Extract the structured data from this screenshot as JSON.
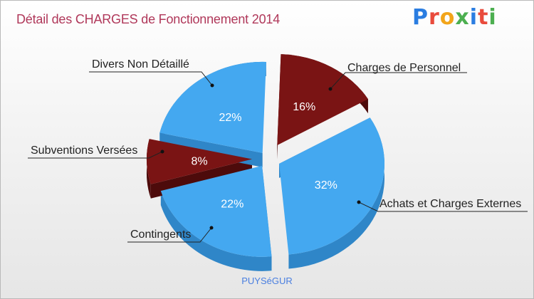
{
  "header": {
    "title": "Détail des CHARGES de Fonctionnement 2014",
    "logo_text": "Proxiti"
  },
  "logo_colors": [
    "#2a7de1",
    "#e94b3c",
    "#f2a51a",
    "#4caf50",
    "#2a7de1",
    "#e94b3c",
    "#4caf50"
  ],
  "footer": {
    "commune": "PUYSéGUR"
  },
  "chart_data": {
    "type": "pie",
    "title": "Détail des CHARGES de Fonctionnement 2014",
    "slices": [
      {
        "name": "Charges de Personnel",
        "value": 16,
        "pct_label": "16%",
        "color": "#7a1414",
        "side_color": "#4d0b0b"
      },
      {
        "name": "Achats et Charges Externes",
        "value": 32,
        "pct_label": "32%",
        "color": "#44a8f0",
        "side_color": "#2f86c8"
      },
      {
        "name": "Contingents",
        "value": 22,
        "pct_label": "22%",
        "color": "#44a8f0",
        "side_color": "#2f86c8"
      },
      {
        "name": "Subventions Versées",
        "value": 8,
        "pct_label": "8%",
        "color": "#7a1414",
        "side_color": "#4d0b0b"
      },
      {
        "name": "Divers Non Détaillé",
        "value": 22,
        "pct_label": "22%",
        "color": "#44a8f0",
        "side_color": "#2f86c8"
      }
    ]
  }
}
